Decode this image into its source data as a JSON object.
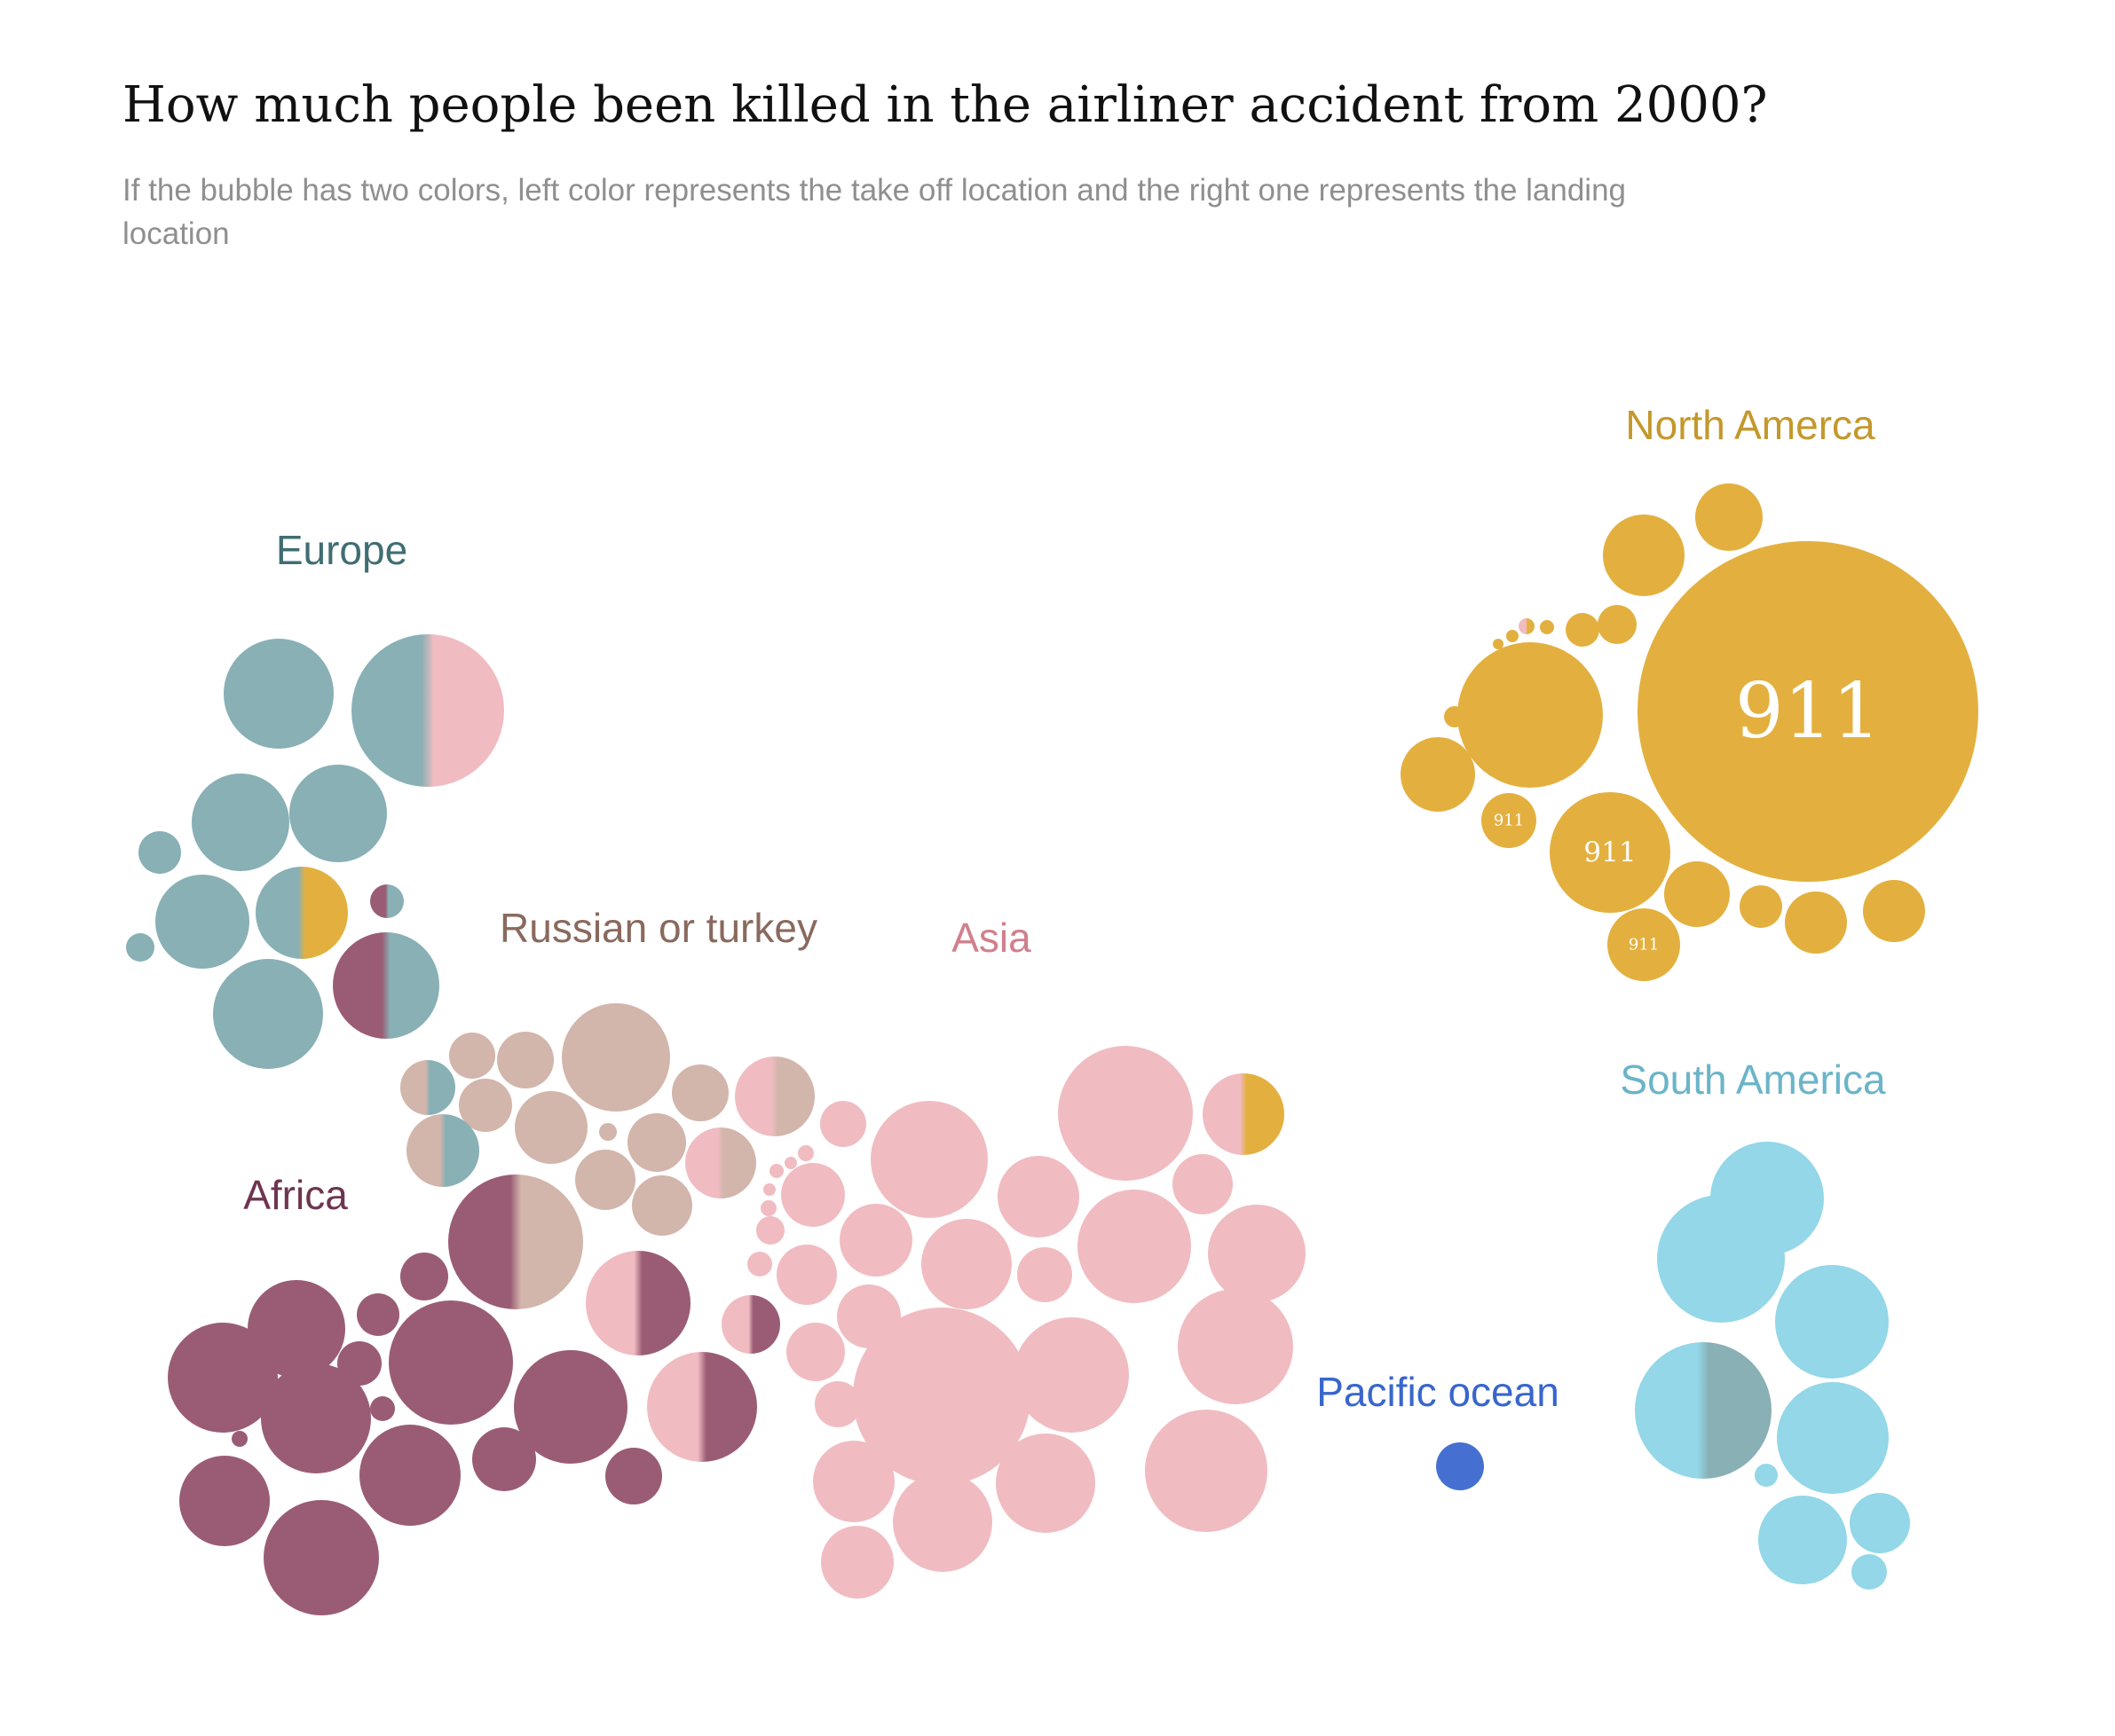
{
  "title": "How much people been killed in the airliner accident from 2000?",
  "subtitle": "If the bubble has two colors, left color represents the take off location and the right one represents the landing location",
  "chart_data": {
    "type": "bubble",
    "regions": [
      {
        "name": "Europe",
        "color": "#88b0b5"
      },
      {
        "name": "North Amerca",
        "color": "#e3b03f"
      },
      {
        "name": "Russian or turkey",
        "color": "#d2b5ab"
      },
      {
        "name": "Asia",
        "color": "#f0bcc1"
      },
      {
        "name": "Africa",
        "color": "#9a5c75"
      },
      {
        "name": "South America",
        "color": "#93d7e8"
      },
      {
        "name": "Pacific ocean",
        "color": "#4570d2"
      }
    ],
    "label_colors": {
      "Europe": "#3f6e73",
      "North Amerca": "#c4982b",
      "Russian or turkey": "#8a6a5e",
      "Asia": "#d0808c",
      "Africa": "#6e3550",
      "South America": "#6bb4c9",
      "Pacific ocean": "#3866cc"
    },
    "bubble_labels": [
      "911",
      "911",
      "911",
      "911"
    ]
  }
}
